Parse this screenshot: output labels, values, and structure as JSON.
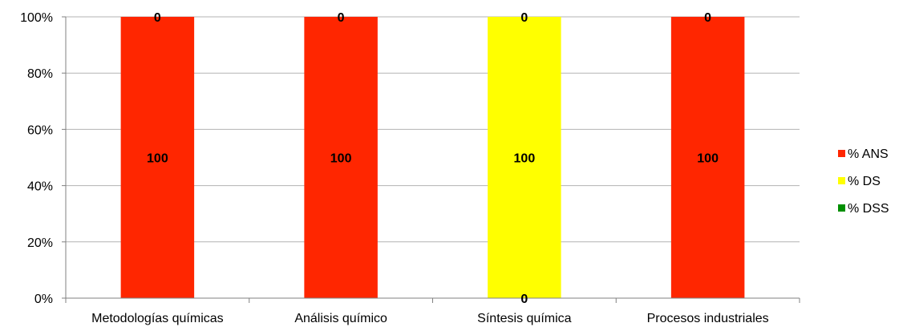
{
  "chart_data": {
    "type": "bar",
    "stacked": true,
    "percent_stacked": true,
    "categories": [
      "Metodologías químicas",
      "Análisis químico",
      "Síntesis química",
      "Procesos industriales"
    ],
    "series": [
      {
        "name": "% ANS",
        "color": "#ff2600",
        "values": [
          100,
          100,
          0,
          100
        ],
        "labels": [
          "100",
          "100",
          "0",
          "100"
        ]
      },
      {
        "name": "% DS",
        "color": "#ffff00",
        "values": [
          0,
          0,
          100,
          0
        ],
        "labels": [
          "0",
          "0",
          "100",
          "0"
        ]
      },
      {
        "name": "% DSS",
        "color": "#008f00",
        "values": [
          0,
          0,
          0,
          0
        ],
        "labels": [
          "",
          "",
          "",
          ""
        ]
      }
    ],
    "y_ticks": [
      "0%",
      "20%",
      "40%",
      "60%",
      "80%",
      "100%"
    ],
    "ylim": [
      0,
      100
    ],
    "grid": true,
    "legend_position": "right"
  }
}
